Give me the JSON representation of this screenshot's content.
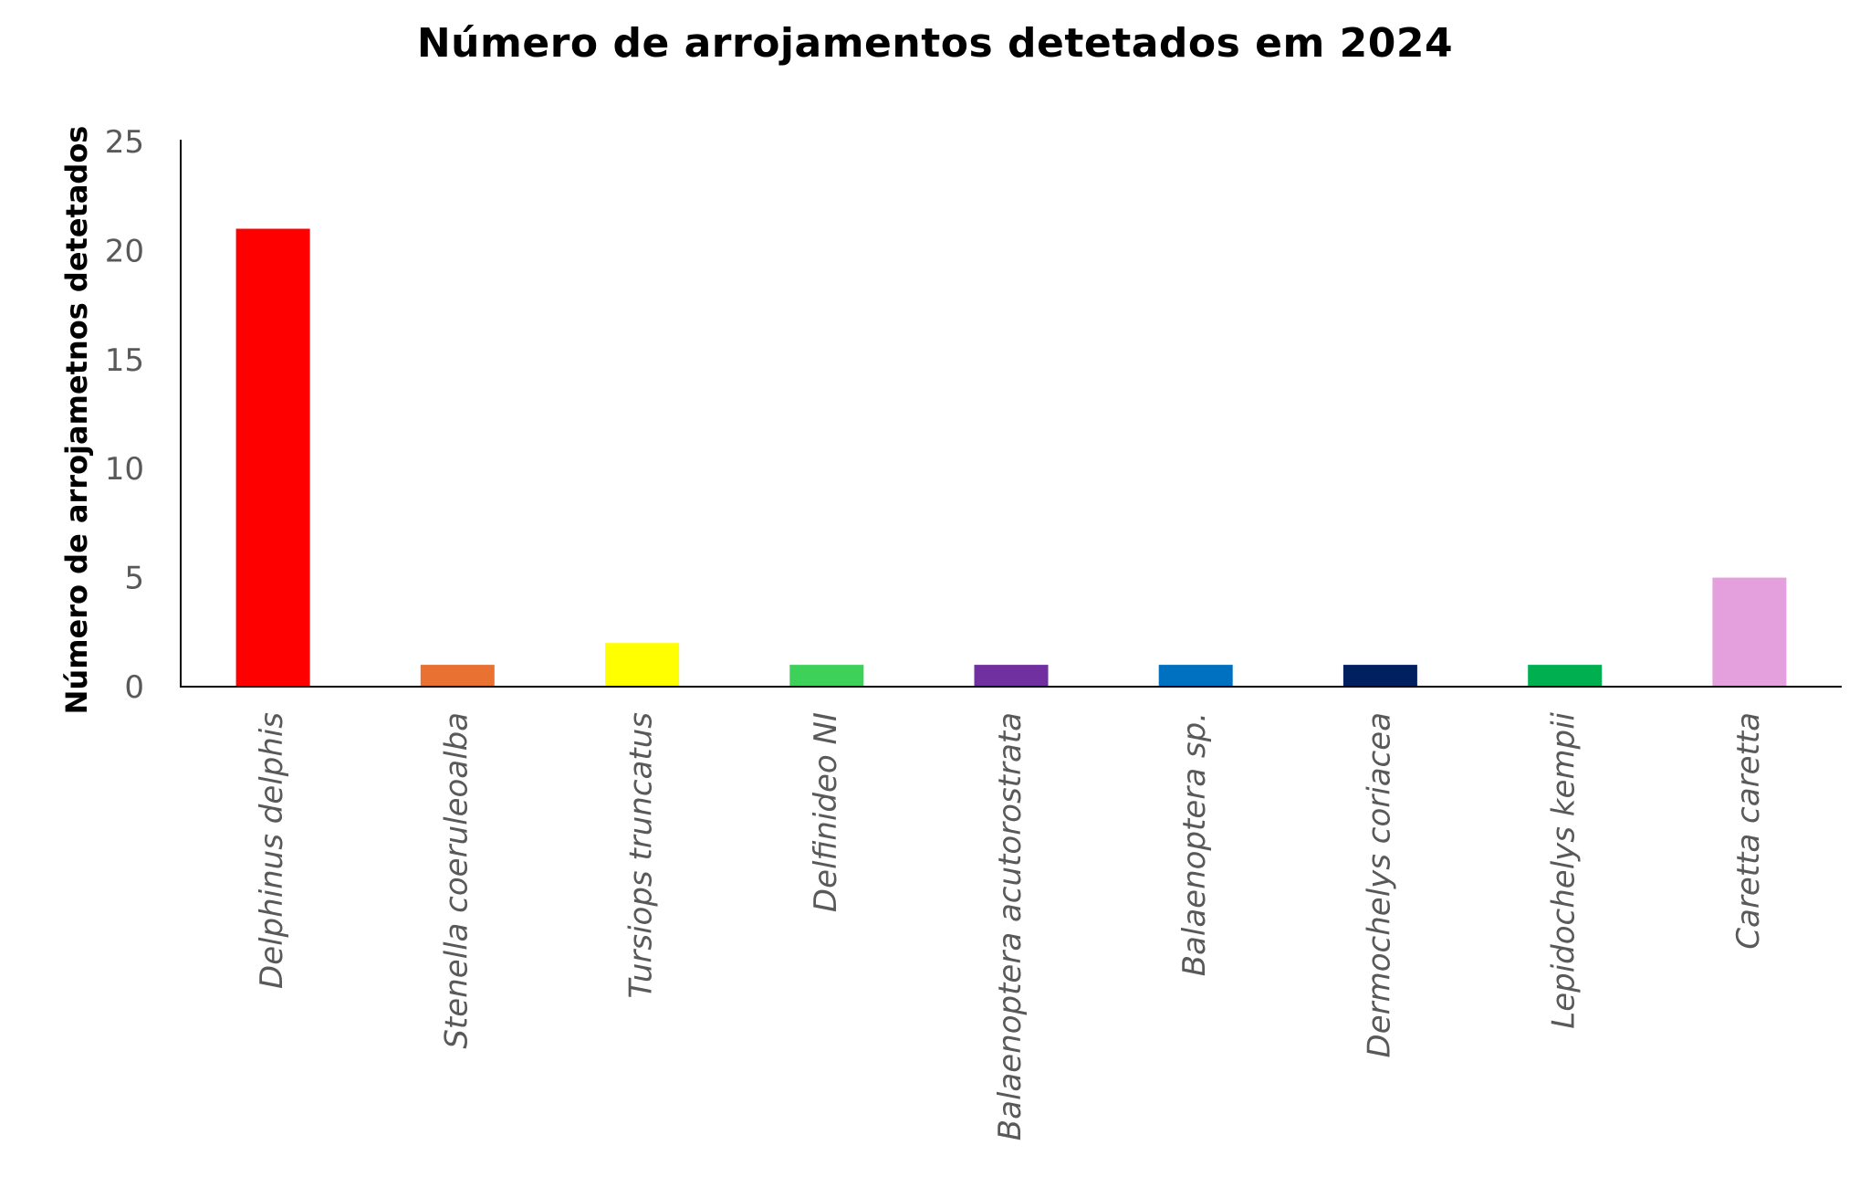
{
  "chart_data": {
    "type": "bar",
    "title": "Número de arrojamentos detetados em 2024",
    "xlabel": "",
    "ylabel": "Número de arrojametnos detetados",
    "ylim": [
      0,
      25
    ],
    "yticks": [
      0,
      5,
      10,
      15,
      20,
      25
    ],
    "grid": false,
    "legend": "none",
    "categories": [
      "Delphinus delphis",
      "Stenella coeruleoalba",
      "Tursiops truncatus",
      "Delfinideo NI",
      "Balaenoptera acutorostrata",
      "Balaenoptera sp.",
      "Dermochelys coriacea",
      "Lepidochelys kempii",
      "Caretta caretta"
    ],
    "values": [
      21,
      1,
      2,
      1,
      1,
      1,
      1,
      1,
      5
    ],
    "colors": [
      "#FF0000",
      "#E97132",
      "#FFFF00",
      "#3DD15A",
      "#7030A0",
      "#0070C0",
      "#002060",
      "#00B050",
      "#E4A0DD"
    ]
  }
}
